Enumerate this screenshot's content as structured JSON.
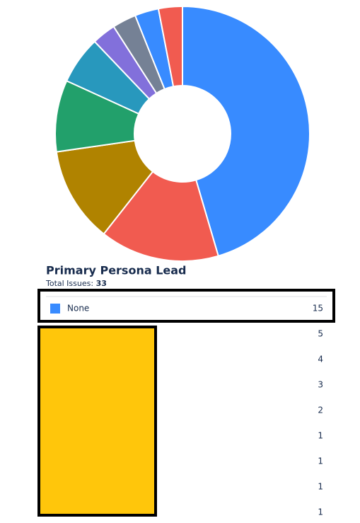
{
  "chart_data": {
    "type": "pie",
    "donut": true,
    "title": "Primary Persona Lead",
    "total_label": "Total Issues:",
    "total": 33,
    "categories": [
      "None",
      null,
      null,
      null,
      null,
      null,
      null,
      null,
      null
    ],
    "values": [
      15,
      5,
      4,
      3,
      2,
      1,
      1,
      1,
      1
    ],
    "colors": [
      "#388bff",
      "#f15b50",
      "#b08300",
      "#22a06b",
      "#2898bd",
      "#8270db",
      "#758195",
      "#388bff",
      "#f15b50"
    ]
  }
}
